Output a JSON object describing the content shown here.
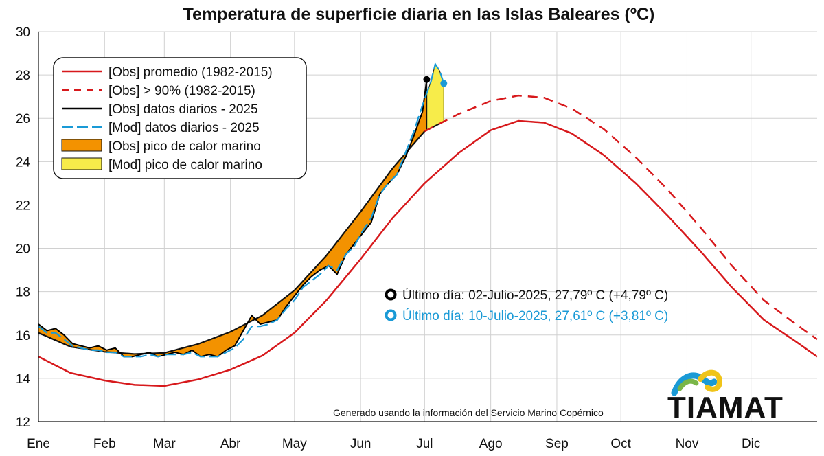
{
  "chart_data": {
    "type": "line",
    "title": "Temperatura de superficie diaria en las Islas Baleares (ºC)",
    "ylim": [
      12,
      30
    ],
    "yticks": [
      "12",
      "14",
      "16",
      "18",
      "20",
      "22",
      "24",
      "26",
      "28",
      "30"
    ],
    "xlim": [
      0,
      365
    ],
    "months": [
      {
        "label": "Ene",
        "day": 0
      },
      {
        "label": "Feb",
        "day": 31
      },
      {
        "label": "Mar",
        "day": 59
      },
      {
        "label": "Abr",
        "day": 90
      },
      {
        "label": "May",
        "day": 120
      },
      {
        "label": "Jun",
        "day": 151
      },
      {
        "label": "Jul",
        "day": 181
      },
      {
        "label": "Ago",
        "day": 212
      },
      {
        "label": "Sep",
        "day": 243
      },
      {
        "label": "Oct",
        "day": 273
      },
      {
        "label": "Nov",
        "day": 304
      },
      {
        "label": "Dic",
        "day": 334
      }
    ],
    "grid": true,
    "legend_position": "top-left",
    "series": [
      {
        "name": "[Obs] promedio (1982-2015)",
        "style": "solid",
        "color": "#d7191c",
        "x": [
          0,
          15,
          31,
          45,
          59,
          75,
          90,
          105,
          120,
          135,
          151,
          166,
          181,
          197,
          212,
          225,
          237,
          250,
          265,
          280,
          295,
          310,
          325,
          340,
          355,
          365
        ],
        "y": [
          15.0,
          14.25,
          13.9,
          13.7,
          13.65,
          13.95,
          14.4,
          15.05,
          16.1,
          17.6,
          19.5,
          21.4,
          23.0,
          24.4,
          25.45,
          25.88,
          25.8,
          25.3,
          24.3,
          23.0,
          21.5,
          19.9,
          18.2,
          16.7,
          15.7,
          15.0
        ]
      },
      {
        "name": "[Obs] > 90% (1982-2015)",
        "style": "dashed",
        "color": "#d7191c",
        "x": [
          181,
          197,
          212,
          225,
          237,
          250,
          265,
          280,
          295,
          310,
          325,
          340,
          355,
          365
        ],
        "y": [
          25.4,
          26.2,
          26.8,
          27.05,
          26.95,
          26.45,
          25.5,
          24.2,
          22.7,
          21.0,
          19.2,
          17.6,
          16.5,
          15.8
        ]
      },
      {
        "name": "[Obs] datos diarios - 2025",
        "style": "solid",
        "color": "#000000",
        "x": [
          0,
          4,
          8,
          12,
          16,
          20,
          24,
          28,
          32,
          36,
          40,
          44,
          48,
          52,
          56,
          60,
          64,
          68,
          72,
          76,
          80,
          84,
          88,
          92,
          96,
          100,
          104,
          108,
          112,
          116,
          120,
          124,
          128,
          132,
          136,
          140,
          144,
          148,
          152,
          156,
          160,
          164,
          168,
          172,
          176,
          180,
          182
        ],
        "y": [
          16.5,
          16.2,
          16.3,
          16.0,
          15.6,
          15.5,
          15.4,
          15.5,
          15.3,
          15.4,
          15.0,
          15.0,
          15.1,
          15.2,
          15.0,
          15.1,
          15.2,
          15.1,
          15.3,
          15.0,
          15.1,
          15.0,
          15.3,
          15.5,
          16.2,
          16.9,
          16.5,
          16.6,
          16.7,
          17.3,
          17.8,
          18.3,
          18.7,
          19.0,
          19.2,
          18.8,
          19.7,
          20.2,
          20.7,
          21.2,
          22.5,
          23.0,
          23.4,
          24.2,
          25.2,
          26.3,
          27.79
        ]
      },
      {
        "name": "[Mod] datos diarios  - 2025",
        "style": "dashed",
        "color": "#1a9ad6",
        "x": [
          0,
          4,
          8,
          12,
          16,
          20,
          24,
          28,
          32,
          36,
          40,
          44,
          48,
          52,
          56,
          60,
          64,
          68,
          72,
          76,
          80,
          84,
          88,
          92,
          96,
          100,
          104,
          108,
          112,
          116,
          120,
          124,
          128,
          132,
          136,
          140,
          144,
          148,
          152,
          156,
          160,
          164,
          168,
          172,
          176,
          180,
          184,
          186,
          188,
          190
        ],
        "y": [
          16.4,
          16.1,
          16.1,
          15.8,
          15.5,
          15.4,
          15.3,
          15.3,
          15.2,
          15.2,
          15.0,
          15.0,
          15.0,
          15.1,
          15.0,
          15.1,
          15.1,
          15.1,
          15.2,
          15.0,
          15.0,
          15.0,
          15.2,
          15.4,
          15.8,
          16.4,
          16.4,
          16.5,
          16.7,
          17.2,
          17.6,
          18.2,
          18.5,
          18.8,
          19.2,
          19.0,
          19.7,
          20.1,
          20.8,
          21.4,
          22.5,
          23.0,
          23.4,
          24.4,
          25.4,
          26.6,
          27.7,
          28.5,
          28.2,
          27.61
        ]
      },
      {
        "name": "[Obs] pico de calor marino",
        "style": "fill",
        "color": "#f39200"
      },
      {
        "name": "[Mod] pico de calor marino",
        "style": "fill",
        "color": "#f7ec4a"
      }
    ],
    "annotations": [
      {
        "text": "Último día: 02-Julio-2025, 27,79º C (+4,79º C)",
        "color": "#111111",
        "marker": "#000000",
        "day": 182,
        "value": 27.79
      },
      {
        "text": "Último día: 10-Julio-2025, 27,61º C (+3,81º C)",
        "color": "#1a9ad6",
        "marker": "#1a9ad6",
        "day": 190,
        "value": 27.61
      }
    ]
  },
  "credit": "Generado usando la información del Servicio Marino Copérnico",
  "brand": "TIAMAT"
}
